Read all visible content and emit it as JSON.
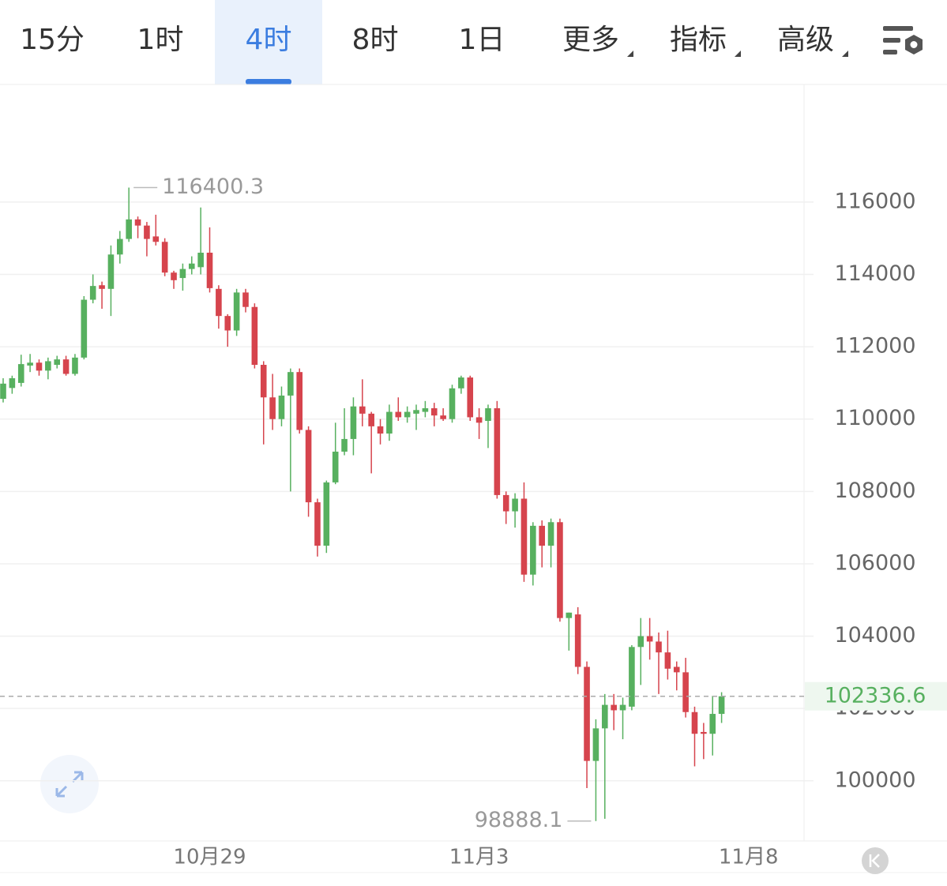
{
  "tabs": [
    "15分",
    "1时",
    "4时",
    "8时",
    "1日",
    "更多",
    "指标",
    "高级"
  ],
  "chart_data": {
    "type": "candlestick",
    "categories": [
      null,
      null,
      null,
      null,
      null,
      null,
      null,
      null,
      null,
      null,
      null,
      null,
      null,
      null,
      null,
      null,
      null,
      null,
      null,
      null,
      null,
      null,
      null,
      "10月29",
      null,
      null,
      null,
      null,
      null,
      null,
      null,
      null,
      null,
      null,
      null,
      null,
      null,
      null,
      null,
      null,
      null,
      null,
      null,
      null,
      null,
      null,
      null,
      null,
      null,
      null,
      null,
      null,
      null,
      "11月3",
      null,
      null,
      null,
      null,
      null,
      null,
      null,
      null,
      null,
      null,
      null,
      null,
      null,
      null,
      null,
      null,
      null,
      null,
      null,
      null,
      null,
      null,
      null,
      null,
      null,
      null,
      null,
      null,
      null,
      "11月8",
      null,
      null,
      null,
      null,
      null
    ],
    "open": [
      110560,
      110860,
      111000,
      111480,
      111560,
      111340,
      111500,
      111650,
      111250,
      111700,
      113300,
      113700,
      113600,
      114550,
      114980,
      115520,
      115350,
      115050,
      114900,
      114050,
      113900,
      114150,
      114200,
      114600,
      113600,
      112850,
      112450,
      113500,
      113100,
      111500,
      110600,
      110000,
      110650,
      111300,
      109700,
      107700,
      106500,
      108250,
      109100,
      109450,
      110350,
      110150,
      109800,
      109600,
      110200,
      110050,
      110150,
      110200,
      110300,
      110100,
      110000,
      110850,
      111150,
      110050,
      109950,
      110300,
      107900,
      107450,
      107800,
      105700,
      107050,
      106500,
      107150,
      104500,
      104600,
      103150,
      100550,
      101450,
      102100,
      101950,
      102050,
      103700,
      104000,
      103850,
      103550,
      103150,
      103000,
      101900,
      101350,
      101300,
      101850,
      null,
      null,
      null,
      null,
      null,
      null,
      null,
      null
    ],
    "high": [
      111130,
      111200,
      111780,
      111800,
      111650,
      111700,
      111750,
      111750,
      111800,
      113400,
      114000,
      113800,
      114800,
      115200,
      116400.3,
      115600,
      115450,
      115650,
      115000,
      114100,
      114300,
      114500,
      115850,
      115300,
      113700,
      112900,
      113600,
      113600,
      113200,
      111600,
      111250,
      110900,
      111400,
      111400,
      109800,
      107800,
      108300,
      109900,
      110300,
      110600,
      111100,
      110200,
      110000,
      110400,
      110600,
      110350,
      110400,
      110500,
      110450,
      110300,
      110950,
      111200,
      111200,
      110300,
      110400,
      110500,
      108000,
      107950,
      108250,
      107150,
      107200,
      107250,
      107250,
      104650,
      104800,
      103300,
      101700,
      102400,
      102400,
      102300,
      103750,
      104500,
      104500,
      104100,
      104150,
      103300,
      103400,
      102050,
      101600,
      102350,
      102450,
      null,
      null,
      null,
      null,
      null,
      null,
      null,
      null
    ],
    "low": [
      110460,
      110700,
      110900,
      111300,
      111200,
      111100,
      111400,
      111200,
      111200,
      111650,
      113200,
      113050,
      112850,
      114300,
      114900,
      115000,
      114500,
      114800,
      113950,
      113600,
      113550,
      114000,
      114000,
      113500,
      112500,
      112000,
      112300,
      112950,
      111400,
      109300,
      109700,
      109800,
      108000,
      109600,
      107300,
      106200,
      106300,
      108200,
      109000,
      109000,
      109800,
      108500,
      109300,
      109400,
      109950,
      109900,
      109700,
      110050,
      109800,
      109950,
      109900,
      110700,
      109950,
      109450,
      109200,
      107800,
      107100,
      107000,
      105500,
      105400,
      105900,
      105900,
      104400,
      103600,
      102950,
      99800,
      98888.1,
      98950,
      101400,
      101150,
      101950,
      102650,
      103350,
      102400,
      102800,
      102500,
      101750,
      100400,
      100600,
      100700,
      101600,
      null,
      null,
      null,
      null,
      null,
      null,
      null,
      null
    ],
    "close": [
      110980,
      111130,
      111520,
      111560,
      111340,
      111600,
      111650,
      111250,
      111700,
      113300,
      113680,
      113600,
      114550,
      114980,
      115520,
      115350,
      114980,
      114900,
      114050,
      113840,
      114150,
      114300,
      114600,
      113620,
      112850,
      112450,
      113500,
      113100,
      111500,
      110600,
      110000,
      110650,
      111300,
      109700,
      107700,
      106500,
      108250,
      109100,
      109450,
      110350,
      110150,
      109800,
      109600,
      110200,
      110050,
      110200,
      110250,
      110300,
      110100,
      110000,
      110850,
      111150,
      110050,
      109900,
      110300,
      107900,
      107450,
      107800,
      105700,
      107050,
      106500,
      107150,
      104500,
      104650,
      103150,
      100550,
      101450,
      102100,
      101950,
      102100,
      103700,
      104000,
      103850,
      103550,
      103100,
      103000,
      101900,
      101300,
      101300,
      101850,
      102336.6,
      null,
      null,
      null,
      null,
      null,
      null,
      null,
      null
    ],
    "up_color": "#57b05f",
    "down_color": "#d6444d",
    "ylim": [
      98380,
      119250
    ],
    "yticks": [
      100000,
      102000,
      104000,
      106000,
      108000,
      110000,
      112000,
      114000,
      116000
    ],
    "grid": true
  }
}
